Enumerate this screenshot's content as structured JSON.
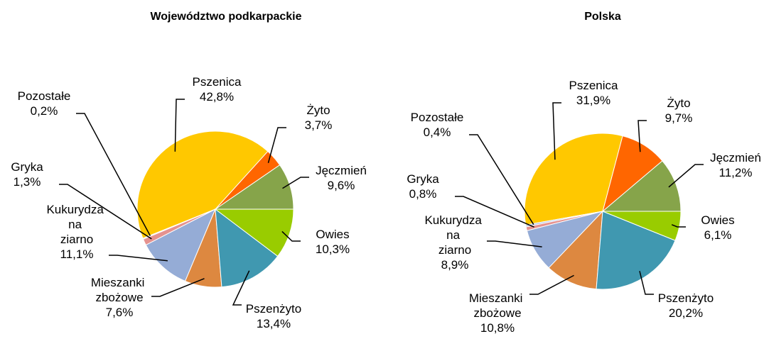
{
  "chart_data": [
    {
      "type": "pie",
      "title": "Województwo podkarpackie",
      "categories": [
        "Jęczmień",
        "Żyto",
        "Pszenica",
        "Pozostałe",
        "Gryka",
        "Kukurydza na ziarno",
        "Mieszanki zbożowe",
        "Pszenżyto",
        "Owies"
      ],
      "values": [
        9.6,
        3.7,
        42.8,
        0.2,
        1.3,
        11.1,
        7.6,
        13.4,
        10.3
      ],
      "value_labels": [
        "9,6%",
        "3,7%",
        "42,8%",
        "0,2%",
        "1,3%",
        "11,1%",
        "7,6%",
        "13,4%",
        "10,3%"
      ],
      "colors": [
        "#86a44a",
        "#ff6600",
        "#ffc800",
        "#b4c6e7",
        "#e5928f",
        "#95acd6",
        "#dd8840",
        "#4098b0",
        "#99cc00"
      ]
    },
    {
      "type": "pie",
      "title": "Polska",
      "categories": [
        "Jęczmień",
        "Żyto",
        "Pszenica",
        "Pozostałe",
        "Gryka",
        "Kukurydza na ziarno",
        "Mieszanki zbożowe",
        "Pszenżyto",
        "Owies"
      ],
      "values": [
        11.2,
        9.7,
        31.9,
        0.4,
        0.8,
        8.9,
        10.8,
        20.2,
        6.1
      ],
      "value_labels": [
        "11,2%",
        "9,7%",
        "31,9%",
        "0,4%",
        "0,8%",
        "8,9%",
        "10,8%",
        "20,2%",
        "6,1%"
      ],
      "colors": [
        "#86a44a",
        "#ff6600",
        "#ffc800",
        "#b4c6e7",
        "#e5928f",
        "#95acd6",
        "#dd8840",
        "#4098b0",
        "#99cc00"
      ]
    }
  ]
}
